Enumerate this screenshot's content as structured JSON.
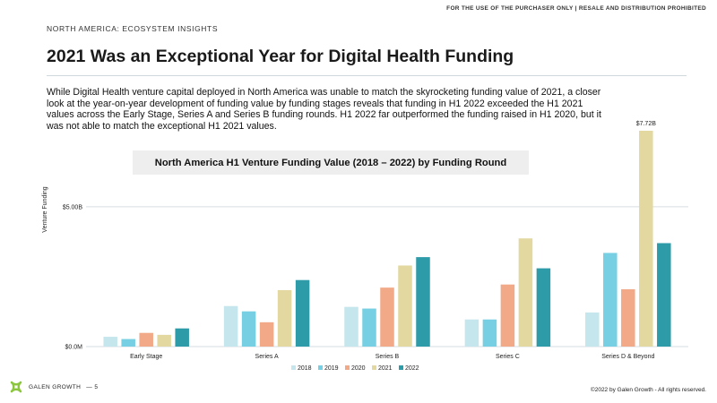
{
  "header": {
    "disclaimer": "FOR THE USE OF THE PURCHASER ONLY | RESALE AND DISTRIBUTION PROHIBITED",
    "eyebrow": "NORTH AMERICA: ECOSYSTEM INSIGHTS",
    "title": "2021 Was an Exceptional Year for Digital Health Funding"
  },
  "body_text": "While Digital Health venture capital deployed in North America was unable to match the skyrocketing funding value of 2021, a closer look at the year-on-year development of funding value by funding stages reveals that funding in H1 2022 exceeded the H1 2021 values across the Early Stage, Series A and Series B funding rounds. H1 2022 far outperformed the funding raised in H1 2020, but it was not able to match the exceptional H1 2021 values.",
  "footer": {
    "brand": "GALEN GROWTH",
    "page": "—  5",
    "copyright": "©2022 by Galen Growth  - All rights reserved."
  },
  "colors": {
    "2018": "#c5e6ec",
    "2019": "#76cfe2",
    "2020": "#f2a987",
    "2021": "#e2d8a0",
    "2022": "#2e9ba9",
    "gridline": "#d7dde0",
    "logo": "#8cc63f"
  },
  "icons": {
    "logo": "galen-growth-logo-icon"
  },
  "chart_data": {
    "type": "bar",
    "title": "North America H1 Venture Funding Value (2018 – 2022) by Funding Round",
    "ylabel": "Venture Funding",
    "xlabel": "",
    "ylim": [
      0,
      7.72
    ],
    "yticks": [
      {
        "value": 0,
        "label": "$0.0M"
      },
      {
        "value": 5,
        "label": "$5.00B"
      }
    ],
    "grid": true,
    "legend": "bottom",
    "categories": [
      "Early Stage",
      "Series A",
      "Series B",
      "Series C",
      "Series D & Beyond"
    ],
    "series": [
      {
        "name": "2018",
        "values": [
          0.35,
          1.45,
          1.42,
          0.97,
          1.22
        ]
      },
      {
        "name": "2019",
        "values": [
          0.27,
          1.26,
          1.36,
          0.97,
          3.35
        ]
      },
      {
        "name": "2020",
        "values": [
          0.49,
          0.87,
          2.11,
          2.22,
          2.05
        ]
      },
      {
        "name": "2021",
        "values": [
          0.42,
          2.02,
          2.9,
          3.87,
          7.72
        ]
      },
      {
        "name": "2022",
        "values": [
          0.65,
          2.38,
          3.2,
          2.8,
          3.7
        ]
      }
    ],
    "annotations": [
      {
        "category": "Series D & Beyond",
        "series": "2021",
        "label": "$7.72B"
      }
    ]
  }
}
